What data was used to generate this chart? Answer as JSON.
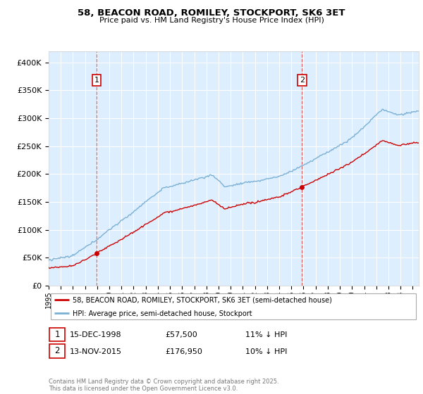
{
  "title": "58, BEACON ROAD, ROMILEY, STOCKPORT, SK6 3ET",
  "subtitle": "Price paid vs. HM Land Registry's House Price Index (HPI)",
  "legend_line1": "58, BEACON ROAD, ROMILEY, STOCKPORT, SK6 3ET (semi-detached house)",
  "legend_line2": "HPI: Average price, semi-detached house, Stockport",
  "annotation1_date": "15-DEC-1998",
  "annotation1_price": 57500,
  "annotation1_hpi": "11% ↓ HPI",
  "annotation2_date": "13-NOV-2015",
  "annotation2_price": 176950,
  "annotation2_hpi": "10% ↓ HPI",
  "footer": "Contains HM Land Registry data © Crown copyright and database right 2025.\nThis data is licensed under the Open Government Licence v3.0.",
  "color_sale": "#cc0000",
  "color_hpi": "#7ab0d4",
  "color_vline": "#dd4444",
  "color_bg": "#ddeeff",
  "ytick_labels": [
    "£0",
    "£50K",
    "£100K",
    "£150K",
    "£200K",
    "£250K",
    "£300K",
    "£350K",
    "£400K"
  ],
  "yticks": [
    0,
    50000,
    100000,
    150000,
    200000,
    250000,
    300000,
    350000,
    400000
  ],
  "sale1_year": 1998.958,
  "sale2_year": 2015.875,
  "sale1_price": 57500,
  "sale2_price": 176950
}
